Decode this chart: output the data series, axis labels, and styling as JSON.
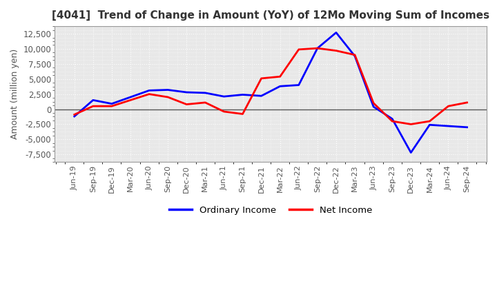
{
  "title": "[4041]  Trend of Change in Amount (YoY) of 12Mo Moving Sum of Incomes",
  "ylabel": "Amount (million yen)",
  "ylim": [
    -8750,
    13750
  ],
  "yticks": [
    -7500,
    -5000,
    -2500,
    0,
    2500,
    5000,
    7500,
    10000,
    12500
  ],
  "legend_labels": [
    "Ordinary Income",
    "Net Income"
  ],
  "x_labels": [
    "Jun-19",
    "Sep-19",
    "Dec-19",
    "Mar-20",
    "Jun-20",
    "Sep-20",
    "Dec-20",
    "Mar-21",
    "Jun-21",
    "Sep-21",
    "Dec-21",
    "Mar-22",
    "Jun-22",
    "Sep-22",
    "Dec-22",
    "Mar-23",
    "Jun-23",
    "Sep-23",
    "Dec-23",
    "Mar-24",
    "Jun-24",
    "Sep-24"
  ],
  "ordinary_income": [
    -1200,
    1500,
    900,
    2000,
    3100,
    3200,
    2800,
    2700,
    2100,
    2400,
    2200,
    3800,
    4000,
    10100,
    12700,
    8800,
    400,
    -1600,
    -7200,
    -2600,
    -2800,
    -3000
  ],
  "net_income": [
    -900,
    500,
    500,
    1500,
    2500,
    2000,
    800,
    1100,
    -400,
    -800,
    5100,
    5400,
    9900,
    10100,
    9700,
    9000,
    1000,
    -2000,
    -2500,
    -2000,
    500,
    1100
  ],
  "background_color": "#ffffff",
  "plot_bg_color": "#e8e8e8",
  "grid_color": "#ffffff",
  "ordinary_color": "#0000ff",
  "net_color": "#ff0000",
  "title_color": "#333333",
  "tick_color": "#555555",
  "zero_line_color": "#555555"
}
